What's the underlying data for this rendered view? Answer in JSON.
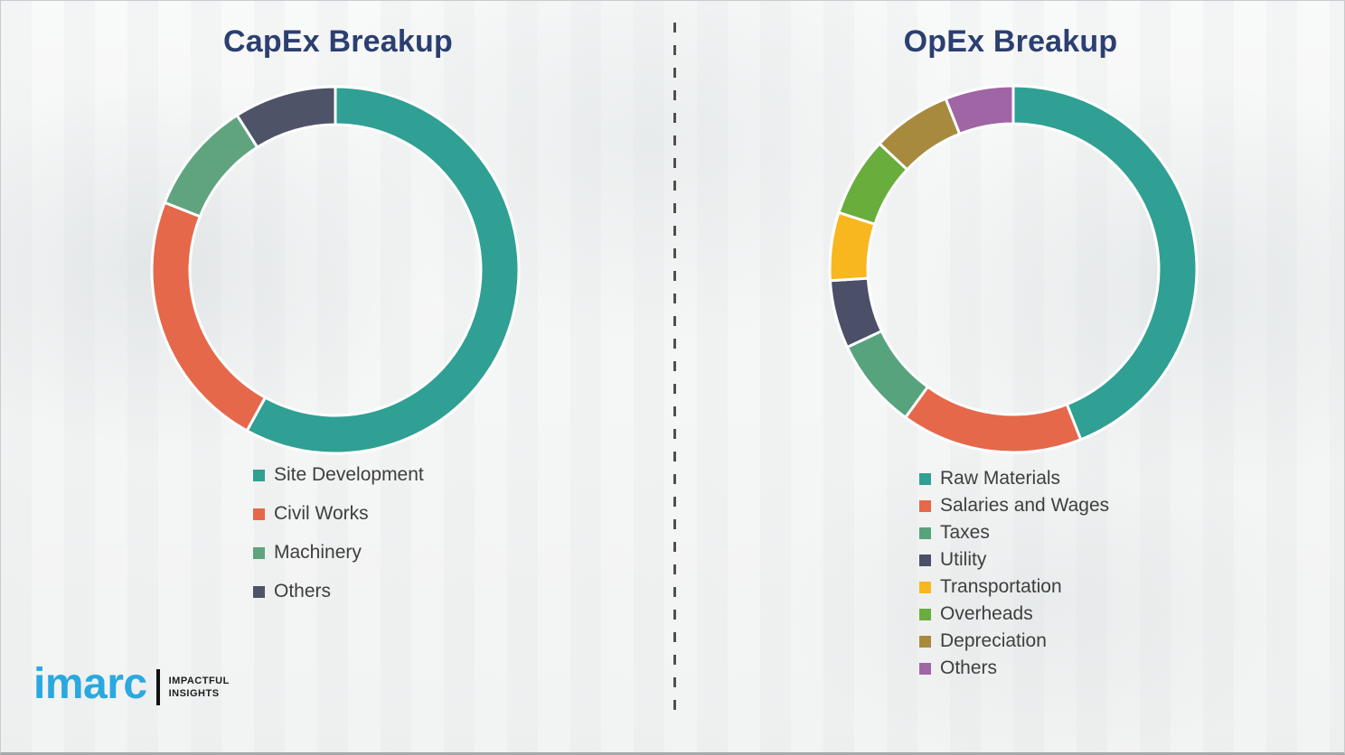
{
  "theme": {
    "title_color": "#2B3F70",
    "legend_text_color": "#3E3E3E",
    "background_color": "#F6F7F7",
    "divider_color": "#4F4F4F",
    "segment_gap_color": "#FFFFFF"
  },
  "chart_data": [
    {
      "type": "pie",
      "subtype": "donut",
      "title": "CapEx Breakup",
      "categories": [
        "Site Development",
        "Civil Works",
        "Machinery",
        "Others"
      ],
      "values": [
        58,
        23,
        10,
        9
      ],
      "colors": [
        "#2FA093",
        "#E5684B",
        "#5FA47E",
        "#4F5368"
      ],
      "start_angle_deg": 0,
      "direction": "clockwise",
      "legend_position": "bottom-left",
      "data_labels": false
    },
    {
      "type": "pie",
      "subtype": "donut",
      "title": "OpEx Breakup",
      "categories": [
        "Raw Materials",
        "Salaries and Wages",
        "Taxes",
        "Utility",
        "Transportation",
        "Overheads",
        "Depreciation",
        "Others"
      ],
      "values": [
        44,
        16,
        8,
        6,
        6,
        7,
        7,
        6
      ],
      "colors": [
        "#2FA093",
        "#E5684B",
        "#57A37D",
        "#4B4F68",
        "#F8B61F",
        "#69AD3D",
        "#A78A3E",
        "#A065A5"
      ],
      "start_angle_deg": 0,
      "direction": "clockwise",
      "legend_position": "bottom-left",
      "data_labels": false
    }
  ],
  "branding": {
    "logo_text": "imarc",
    "tagline_line1": "IMPACTFUL",
    "tagline_line2": "INSIGHTS",
    "logo_color": "#2AA9E0"
  }
}
